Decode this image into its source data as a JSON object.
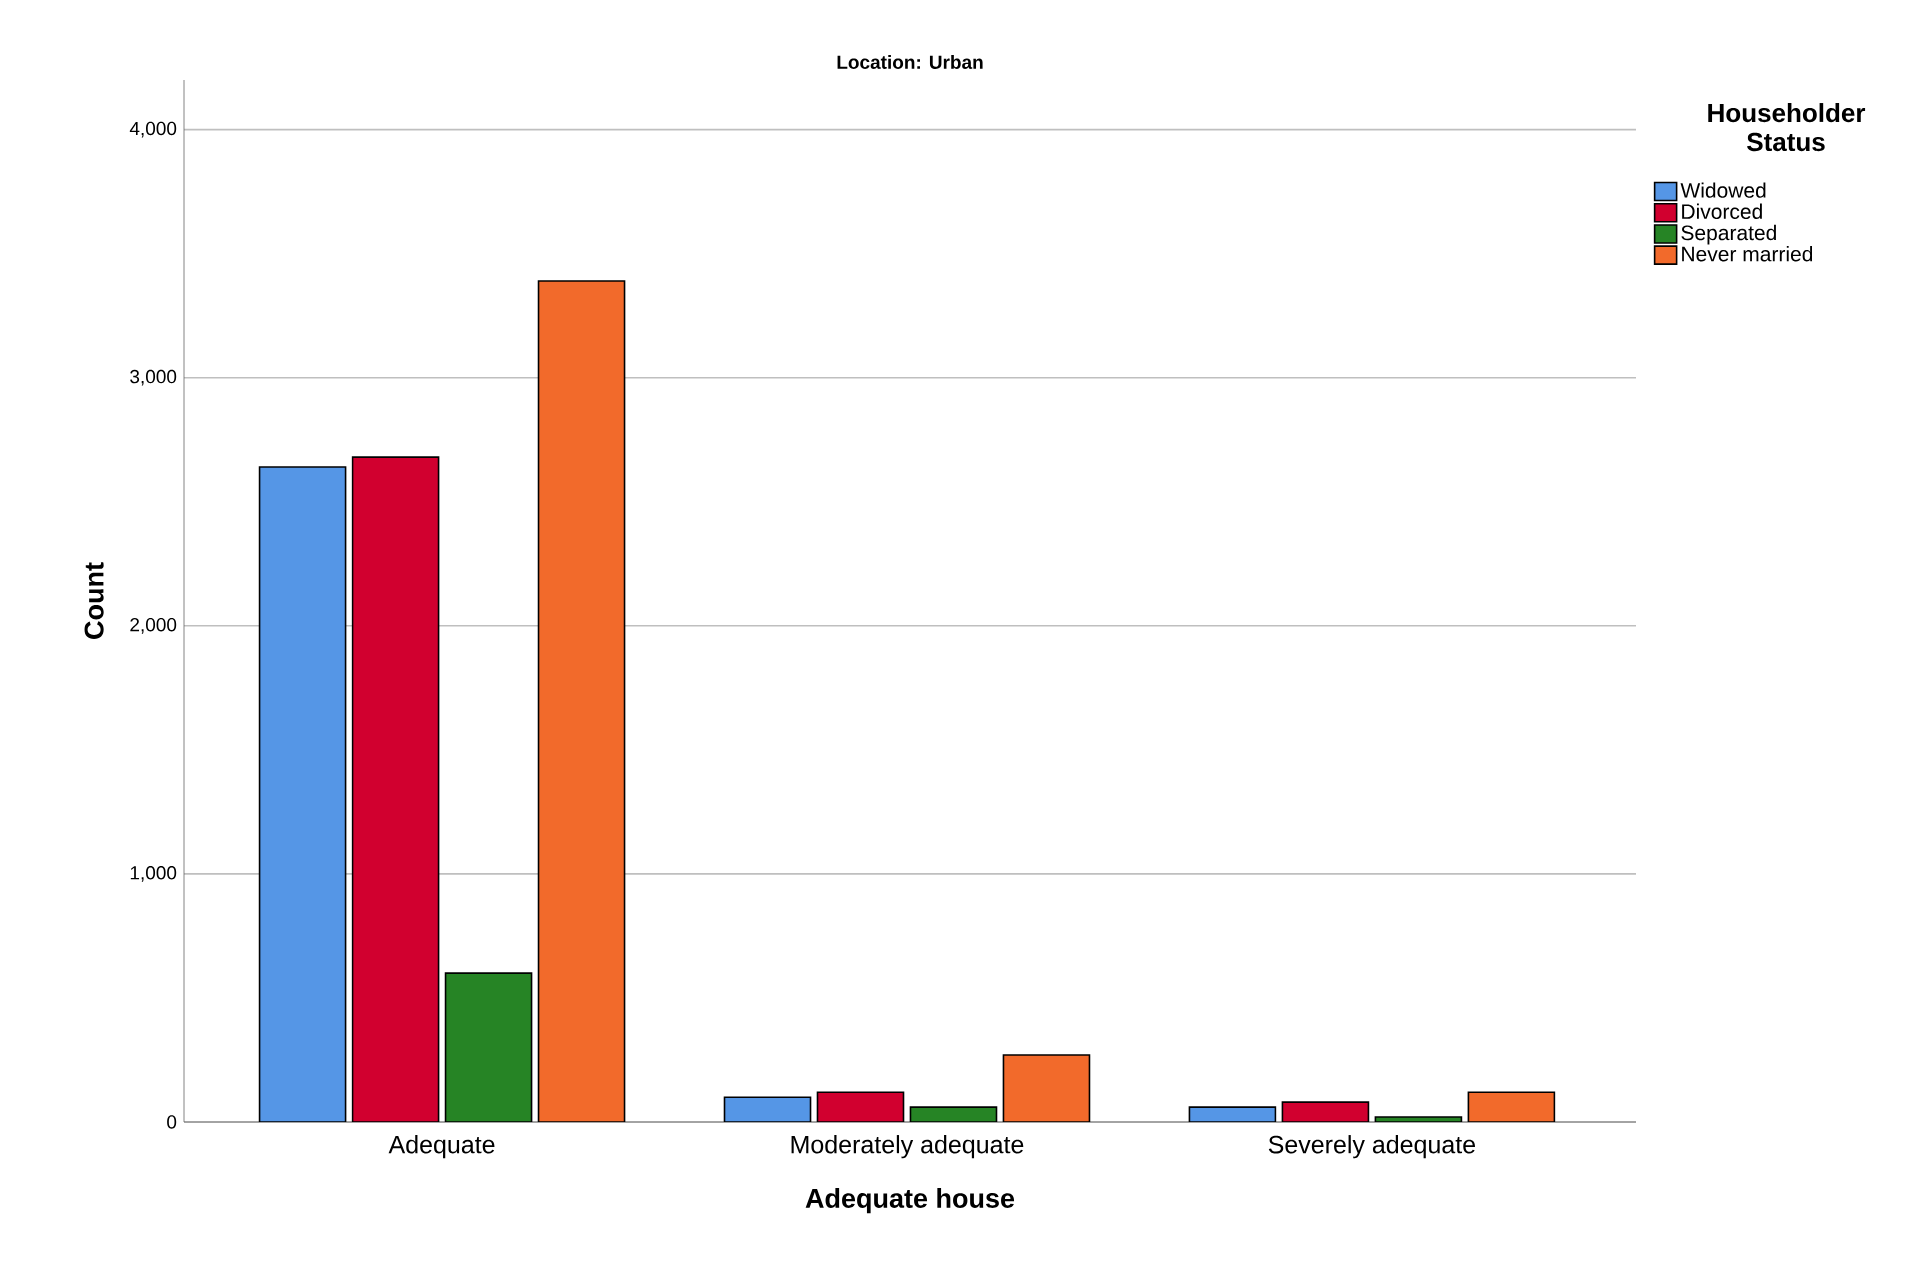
{
  "chart_data": {
    "type": "bar",
    "title": "Location: Urban",
    "xlabel": "Adequate house",
    "ylabel": "Count",
    "legend_title": "Householder Status",
    "categories": [
      "Adequate",
      "Moderately adequate",
      "Severely adequate"
    ],
    "series": [
      {
        "name": "Widowed",
        "color": "#5596e6",
        "values": [
          2640,
          100,
          60
        ]
      },
      {
        "name": "Divorced",
        "color": "#d1002f",
        "values": [
          2680,
          120,
          80
        ]
      },
      {
        "name": "Separated",
        "color": "#268425",
        "values": [
          600,
          60,
          20
        ]
      },
      {
        "name": "Never married",
        "color": "#f26a2b",
        "values": [
          3390,
          270,
          120
        ]
      }
    ],
    "ylim": [
      0,
      4200
    ],
    "yticks": [
      {
        "value": 0,
        "label": "0"
      },
      {
        "value": 1000,
        "label": "1,000"
      },
      {
        "value": 2000,
        "label": "2,000"
      },
      {
        "value": 3000,
        "label": "3,000"
      },
      {
        "value": 4000,
        "label": "4,000"
      }
    ],
    "grid": "y",
    "legend": "top right"
  }
}
